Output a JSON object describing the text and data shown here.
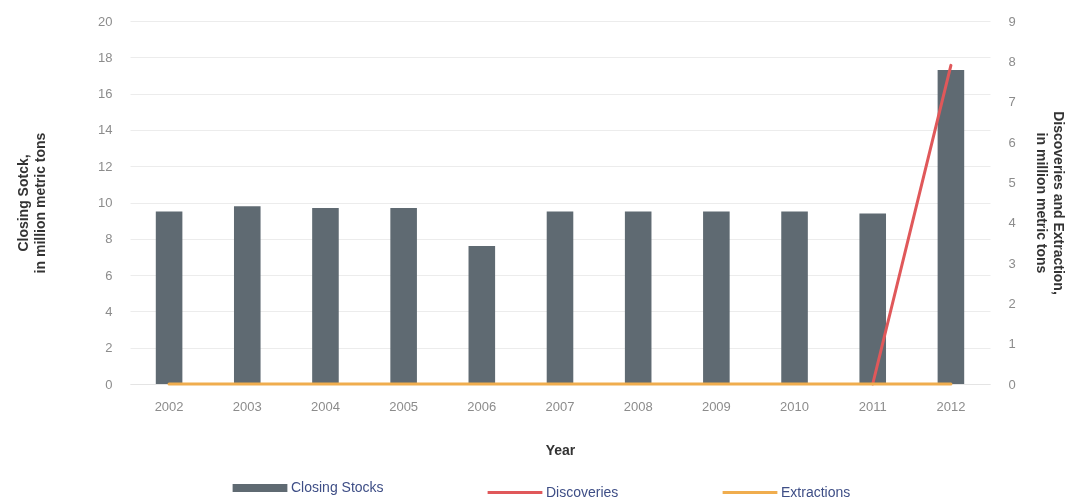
{
  "chart_data": {
    "type": "bar",
    "categories": [
      "2002",
      "2003",
      "2004",
      "2005",
      "2006",
      "2007",
      "2008",
      "2009",
      "2010",
      "2011",
      "2012"
    ],
    "series": [
      {
        "name": "Closing Stocks",
        "color": "#5f6a72",
        "values": [
          9.5,
          9.8,
          9.7,
          9.7,
          7.6,
          9.5,
          9.5,
          9.5,
          9.5,
          9.4,
          17.3
        ]
      },
      {
        "name": "Discoveries",
        "type": "line",
        "axis": "y2",
        "color": "#e0585a",
        "values": [
          null,
          null,
          null,
          null,
          null,
          null,
          null,
          null,
          null,
          0,
          7.9
        ]
      },
      {
        "name": "Extractions",
        "type": "line",
        "axis": "y2",
        "color": "#f0ad4e",
        "values": [
          0,
          0,
          0,
          0,
          0,
          0,
          0,
          0,
          0,
          0,
          0
        ]
      }
    ],
    "xlabel": "Year",
    "ylabel": "Closing Sotck,\nin million metric tons",
    "y2label": "Discoveries and Extraction,\nin million metric tons",
    "ylim": [
      0,
      20
    ],
    "yticks": [
      0,
      2,
      4,
      6,
      8,
      10,
      12,
      14,
      16,
      18,
      20
    ],
    "y2lim": [
      0,
      9
    ],
    "y2ticks": [
      0,
      1,
      2,
      3,
      4,
      5,
      6,
      7,
      8,
      9
    ],
    "grid": "y",
    "legend": "bottom"
  }
}
